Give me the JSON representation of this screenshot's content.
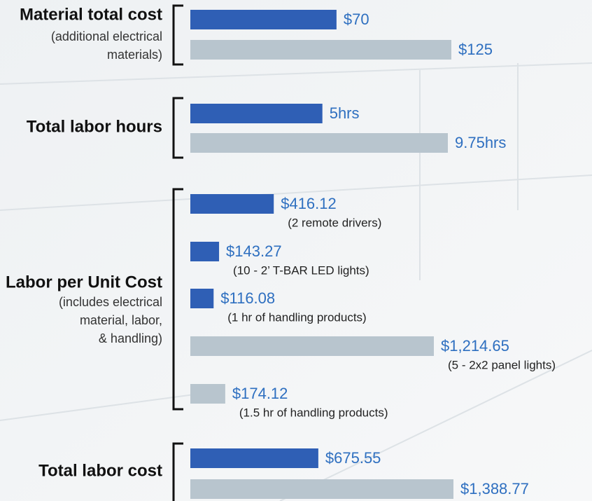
{
  "chart_data": [
    {
      "type": "bar",
      "title": "Material total cost",
      "subtitle": [
        "(additional electrical",
        "materials)"
      ],
      "values": [
        70,
        125
      ],
      "value_labels": [
        "$70",
        "$125"
      ],
      "colors": [
        "#2f5fb5",
        "#b8c5ce"
      ]
    },
    {
      "type": "bar",
      "title": "Total labor hours",
      "values": [
        5,
        9.75
      ],
      "value_labels": [
        "5hrs",
        "9.75hrs"
      ],
      "colors": [
        "#2f5fb5",
        "#b8c5ce"
      ]
    },
    {
      "type": "bar",
      "title": "Labor per Unit Cost",
      "subtitle": [
        "(includes electrical",
        "material, labor,",
        "& handling)"
      ],
      "values": [
        416.12,
        143.27,
        116.08,
        1214.65,
        174.12
      ],
      "value_labels": [
        "$416.12",
        "$143.27",
        "$116.08",
        "$1,214.65",
        "$174.12"
      ],
      "notes": [
        "(2 remote drivers)",
        "(10 - 2’  T-BAR LED lights)",
        "(1 hr of handling products)",
        "(5 - 2x2 panel lights)",
        "(1.5 hr of handling products)"
      ],
      "colors": [
        "#2f5fb5",
        "#2f5fb5",
        "#2f5fb5",
        "#b8c5ce",
        "#b8c5ce"
      ]
    },
    {
      "type": "bar",
      "title": "Total labor cost",
      "values": [
        675.55,
        1388.77
      ],
      "value_labels": [
        "$675.55",
        "$1,388.77"
      ],
      "colors": [
        "#2f5fb5",
        "#b8c5ce"
      ]
    }
  ]
}
